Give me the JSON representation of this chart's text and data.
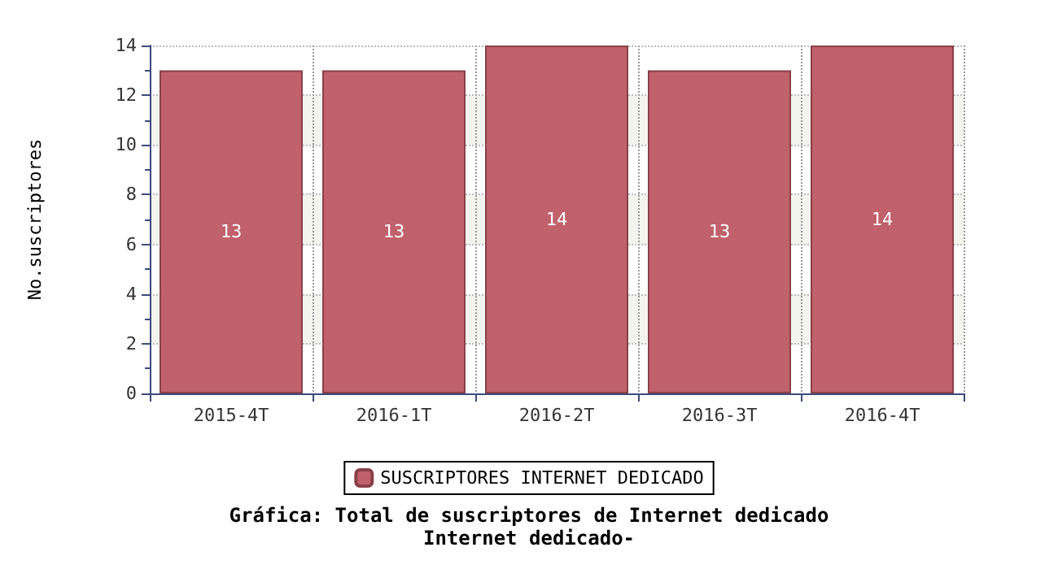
{
  "chart_data": {
    "type": "bar",
    "title": "Gráfica: Total de suscriptores de Internet dedicado",
    "subtitle": "Internet dedicado-",
    "ylabel": "No.suscriptores",
    "categories": [
      "2015-4T",
      "2016-1T",
      "2016-2T",
      "2016-3T",
      "2016-4T"
    ],
    "series": [
      {
        "name": "SUSCRIPTORES INTERNET DEDICADO",
        "color": "#c0616b",
        "values": [
          13,
          13,
          14,
          13,
          14
        ]
      }
    ],
    "ylim": [
      0,
      14
    ],
    "yticks": [
      0,
      2,
      4,
      6,
      8,
      10,
      12,
      14
    ],
    "grid": true,
    "legend": "bottom",
    "data_labels": true
  }
}
